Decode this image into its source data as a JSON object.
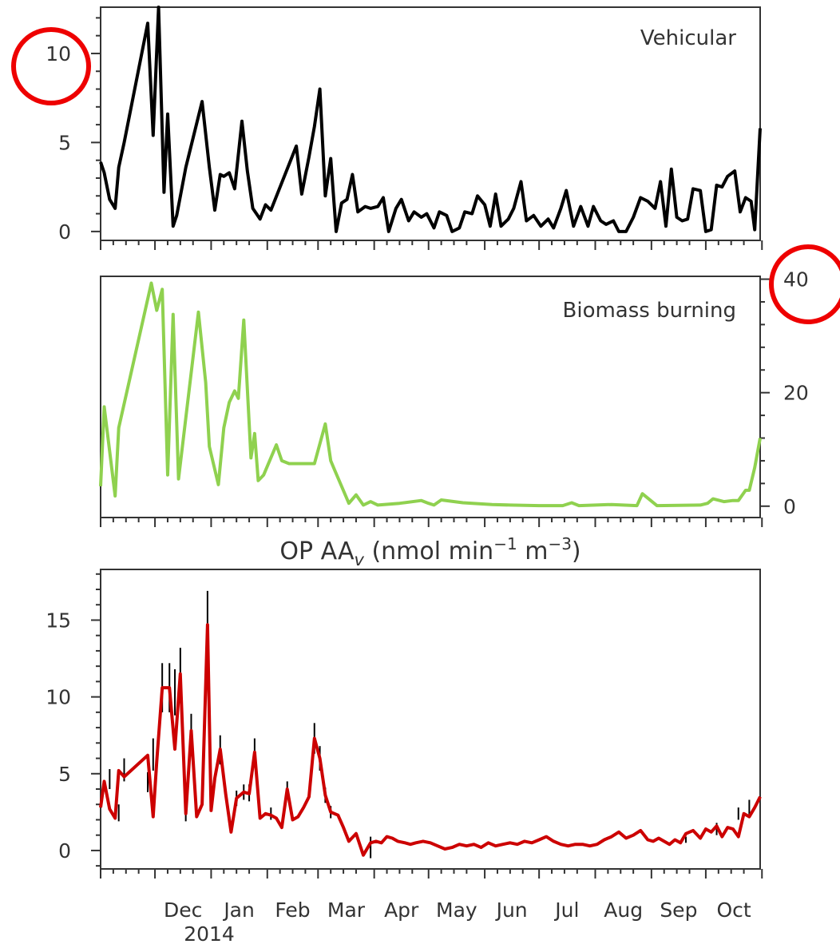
{
  "chart_data": {
    "type": "line",
    "x_axis": {
      "tick_labels": [
        "Dec",
        "Jan",
        "Feb",
        "Mar",
        "Apr",
        "May",
        "Jun",
        "Jul",
        "Aug",
        "Sep",
        "Oct"
      ],
      "year_label": "2014",
      "start": "2013-11-01",
      "end": "2014-10-31"
    },
    "panels": [
      {
        "type": "line",
        "label": "Vehicular",
        "color": "#000000",
        "y_axis_side": "left",
        "ylim": [
          -0.5,
          12.6
        ],
        "y_ticks": [
          0,
          5,
          10
        ],
        "highlighted_tick": "10",
        "x": [
          "2013-11-01",
          "2013-11-03",
          "2013-11-06",
          "2013-11-09",
          "2013-11-11",
          "2013-11-14",
          "2013-11-27",
          "2013-11-30",
          "2013-12-03",
          "2013-12-06",
          "2013-12-08",
          "2013-12-11",
          "2013-12-13",
          "2013-12-18",
          "2013-12-27",
          "2013-12-31",
          "2014-01-03",
          "2014-01-06",
          "2014-01-08",
          "2014-01-11",
          "2014-01-14",
          "2014-01-18",
          "2014-01-21",
          "2014-01-24",
          "2014-01-28",
          "2014-01-31",
          "2014-02-03",
          "2014-02-17",
          "2014-02-20",
          "2014-02-24",
          "2014-02-27",
          "2014-03-02",
          "2014-03-05",
          "2014-03-08",
          "2014-03-11",
          "2014-03-14",
          "2014-03-17",
          "2014-03-20",
          "2014-03-23",
          "2014-03-27",
          "2014-03-30",
          "2014-04-03",
          "2014-04-06",
          "2014-04-09",
          "2014-04-13",
          "2014-04-16",
          "2014-04-20",
          "2014-04-23",
          "2014-04-27",
          "2014-04-30",
          "2014-05-04",
          "2014-05-07",
          "2014-05-11",
          "2014-05-14",
          "2014-05-18",
          "2014-05-21",
          "2014-05-25",
          "2014-05-28",
          "2014-06-01",
          "2014-06-04",
          "2014-06-07",
          "2014-06-10",
          "2014-06-14",
          "2014-06-17",
          "2014-06-21",
          "2014-06-24",
          "2014-06-28",
          "2014-07-02",
          "2014-07-06",
          "2014-07-09",
          "2014-07-13",
          "2014-07-16",
          "2014-07-20",
          "2014-07-24",
          "2014-07-28",
          "2014-07-31",
          "2014-08-04",
          "2014-08-07",
          "2014-08-11",
          "2014-08-14",
          "2014-08-18",
          "2014-08-22",
          "2014-08-26",
          "2014-08-30",
          "2014-09-03",
          "2014-09-06",
          "2014-09-09",
          "2014-09-12",
          "2014-09-15",
          "2014-09-18",
          "2014-09-21",
          "2014-09-24",
          "2014-09-28",
          "2014-10-01",
          "2014-10-04",
          "2014-10-07",
          "2014-10-10",
          "2014-10-13",
          "2014-10-17",
          "2014-10-20",
          "2014-10-23",
          "2014-10-26",
          "2014-10-28",
          "2014-10-31"
        ],
        "values": [
          3.9,
          3.3,
          1.8,
          1.3,
          3.6,
          5.0,
          11.7,
          5.4,
          12.6,
          2.2,
          6.6,
          0.3,
          0.9,
          3.6,
          7.3,
          3.6,
          1.2,
          3.2,
          3.1,
          3.3,
          2.4,
          6.2,
          3.4,
          1.3,
          0.7,
          1.5,
          1.2,
          4.8,
          2.1,
          4.2,
          5.9,
          8.0,
          2.0,
          4.1,
          0.0,
          1.6,
          1.8,
          3.2,
          1.1,
          1.4,
          1.3,
          1.4,
          1.9,
          0.0,
          1.3,
          1.8,
          0.6,
          1.1,
          0.8,
          1.0,
          0.2,
          1.1,
          0.9,
          0.0,
          0.2,
          1.1,
          1.0,
          2.0,
          1.5,
          0.3,
          2.1,
          0.3,
          0.7,
          1.3,
          2.8,
          0.6,
          0.9,
          0.3,
          0.7,
          0.2,
          1.3,
          2.3,
          0.3,
          1.4,
          0.3,
          1.4,
          0.6,
          0.4,
          0.6,
          0.0,
          0.0,
          0.8,
          1.9,
          1.7,
          1.3,
          2.8,
          0.3,
          3.5,
          0.8,
          0.6,
          0.7,
          2.4,
          2.3,
          0.0,
          0.1,
          2.6,
          2.5,
          3.1,
          3.4,
          1.1,
          1.9,
          1.7,
          0.1,
          5.8
        ]
      },
      {
        "type": "line",
        "label": "Biomass burning",
        "color": "#8fd14f",
        "y_axis_side": "right",
        "ylim": [
          -2,
          40.5
        ],
        "y_ticks": [
          0,
          20,
          40
        ],
        "highlighted_tick": "40",
        "x": [
          "2013-11-01",
          "2013-11-03",
          "2013-11-09",
          "2013-11-11",
          "2013-11-29",
          "2013-12-02",
          "2013-12-05",
          "2013-12-08",
          "2013-12-11",
          "2013-12-14",
          "2013-12-25",
          "2013-12-29",
          "2013-12-31",
          "2014-01-05",
          "2014-01-08",
          "2014-01-11",
          "2014-01-14",
          "2014-01-16",
          "2014-01-19",
          "2014-01-23",
          "2014-01-25",
          "2014-01-27",
          "2014-01-30",
          "2014-02-06",
          "2014-02-09",
          "2014-02-13",
          "2014-02-27",
          "2014-03-05",
          "2014-03-08",
          "2014-03-10",
          "2014-03-14",
          "2014-03-18",
          "2014-03-22",
          "2014-03-26",
          "2014-03-30",
          "2014-04-03",
          "2014-04-15",
          "2014-04-27",
          "2014-05-01",
          "2014-05-04",
          "2014-05-08",
          "2014-05-20",
          "2014-06-05",
          "2014-06-15",
          "2014-07-01",
          "2014-07-14",
          "2014-07-19",
          "2014-07-23",
          "2014-08-10",
          "2014-08-24",
          "2014-08-27",
          "2014-09-04",
          "2014-09-28",
          "2014-10-02",
          "2014-10-05",
          "2014-10-11",
          "2014-10-16",
          "2014-10-19",
          "2014-10-23",
          "2014-10-25",
          "2014-10-28",
          "2014-10-31"
        ],
        "values": [
          3.5,
          17.5,
          1.8,
          13.8,
          39.3,
          34.5,
          38.2,
          5.5,
          33.8,
          4.8,
          34.2,
          21.8,
          10.5,
          3.8,
          13.8,
          18.3,
          20.3,
          19.0,
          32.8,
          8.5,
          12.8,
          4.5,
          5.5,
          10.8,
          8.0,
          7.5,
          7.5,
          14.5,
          8.0,
          6.5,
          3.5,
          0.5,
          2.0,
          0.2,
          0.8,
          0.2,
          0.5,
          1.0,
          0.5,
          0.2,
          1.1,
          0.6,
          0.3,
          0.2,
          0.1,
          0.1,
          0.6,
          0.1,
          0.3,
          0.1,
          2.2,
          0.1,
          0.2,
          0.5,
          1.3,
          0.8,
          1.0,
          1.0,
          2.8,
          2.8,
          6.8,
          12.0
        ]
      },
      {
        "type": "line",
        "title": "OP AA",
        "title_subscript": "v",
        "title_units": " (nmol min",
        "title_units_sup1": "−1",
        "title_units_mid": " m",
        "title_units_sup2": "−3",
        "title_units_end": ")",
        "color": "#cc0000",
        "error_bar_color": "#000000",
        "y_axis_side": "left",
        "ylim": [
          -1.2,
          18.3
        ],
        "y_ticks": [
          0,
          5,
          10,
          15
        ],
        "x": [
          "2013-11-01",
          "2013-11-03",
          "2013-11-06",
          "2013-11-09",
          "2013-11-11",
          "2013-11-14",
          "2013-11-27",
          "2013-11-30",
          "2013-12-02",
          "2013-12-05",
          "2013-12-09",
          "2013-12-12",
          "2013-12-15",
          "2013-12-18",
          "2013-12-21",
          "2013-12-24",
          "2013-12-27",
          "2013-12-30",
          "2014-01-01",
          "2014-01-03",
          "2014-01-06",
          "2014-01-09",
          "2014-01-12",
          "2014-01-15",
          "2014-01-19",
          "2014-01-22",
          "2014-01-25",
          "2014-01-28",
          "2014-01-31",
          "2014-02-03",
          "2014-02-06",
          "2014-02-09",
          "2014-02-12",
          "2014-02-15",
          "2014-02-18",
          "2014-02-21",
          "2014-02-24",
          "2014-02-27",
          "2014-03-02",
          "2014-03-05",
          "2014-03-08",
          "2014-03-12",
          "2014-03-15",
          "2014-03-18",
          "2014-03-22",
          "2014-03-26",
          "2014-03-30",
          "2014-04-02",
          "2014-04-05",
          "2014-04-08",
          "2014-04-11",
          "2014-04-14",
          "2014-04-18",
          "2014-04-21",
          "2014-04-24",
          "2014-04-28",
          "2014-05-02",
          "2014-05-06",
          "2014-05-10",
          "2014-05-14",
          "2014-05-18",
          "2014-05-22",
          "2014-05-26",
          "2014-05-30",
          "2014-06-03",
          "2014-06-07",
          "2014-06-11",
          "2014-06-15",
          "2014-06-19",
          "2014-06-23",
          "2014-06-27",
          "2014-07-01",
          "2014-07-05",
          "2014-07-09",
          "2014-07-13",
          "2014-07-17",
          "2014-07-21",
          "2014-07-25",
          "2014-07-29",
          "2014-08-02",
          "2014-08-06",
          "2014-08-10",
          "2014-08-14",
          "2014-08-18",
          "2014-08-22",
          "2014-08-26",
          "2014-08-30",
          "2014-09-02",
          "2014-09-05",
          "2014-09-08",
          "2014-09-11",
          "2014-09-14",
          "2014-09-17",
          "2014-09-20",
          "2014-09-24",
          "2014-09-28",
          "2014-10-01",
          "2014-10-04",
          "2014-10-07",
          "2014-10-10",
          "2014-10-13",
          "2014-10-16",
          "2014-10-19",
          "2014-10-22",
          "2014-10-25",
          "2014-10-28",
          "2014-10-31"
        ],
        "values": [
          2.8,
          4.5,
          2.7,
          2.1,
          5.2,
          4.8,
          6.2,
          2.2,
          5.8,
          10.6,
          10.6,
          6.6,
          11.5,
          2.4,
          7.8,
          2.2,
          3.0,
          14.7,
          2.6,
          4.7,
          6.6,
          3.7,
          1.2,
          3.4,
          3.8,
          3.7,
          6.4,
          2.1,
          2.4,
          2.3,
          2.1,
          1.5,
          4.0,
          2.0,
          2.2,
          2.8,
          3.5,
          7.3,
          6.0,
          3.6,
          2.5,
          2.3,
          1.5,
          0.6,
          1.1,
          -0.3,
          0.5,
          0.6,
          0.5,
          0.9,
          0.8,
          0.6,
          0.5,
          0.4,
          0.5,
          0.6,
          0.5,
          0.3,
          0.1,
          0.2,
          0.4,
          0.3,
          0.4,
          0.2,
          0.5,
          0.3,
          0.4,
          0.5,
          0.4,
          0.6,
          0.5,
          0.7,
          0.9,
          0.6,
          0.4,
          0.3,
          0.4,
          0.4,
          0.3,
          0.4,
          0.7,
          0.9,
          1.2,
          0.8,
          1.0,
          1.3,
          0.7,
          0.6,
          0.8,
          0.6,
          0.4,
          0.7,
          0.5,
          1.1,
          1.3,
          0.8,
          1.4,
          1.2,
          1.6,
          0.9,
          1.5,
          1.4,
          0.9,
          2.4,
          2.2,
          2.8,
          3.5
        ],
        "error_bars": [
          {
            "x": "2013-11-06",
            "lo": 4.0,
            "hi": 5.3
          },
          {
            "x": "2013-11-11",
            "lo": 1.9,
            "hi": 3.0
          },
          {
            "x": "2013-11-14",
            "lo": 4.5,
            "hi": 6.0
          },
          {
            "x": "2013-11-27",
            "lo": 3.8,
            "hi": 5.1
          },
          {
            "x": "2013-11-30",
            "lo": 5.2,
            "hi": 7.3
          },
          {
            "x": "2013-12-05",
            "lo": 9.0,
            "hi": 12.2
          },
          {
            "x": "2013-12-09",
            "lo": 9.0,
            "hi": 12.2
          },
          {
            "x": "2013-12-12",
            "lo": 8.8,
            "hi": 11.8
          },
          {
            "x": "2013-12-15",
            "lo": 9.8,
            "hi": 13.2
          },
          {
            "x": "2013-12-18",
            "lo": 1.9,
            "hi": 3.1
          },
          {
            "x": "2013-12-21",
            "lo": 6.6,
            "hi": 8.9
          },
          {
            "x": "2013-12-30",
            "lo": 12.6,
            "hi": 16.9
          },
          {
            "x": "2014-01-06",
            "lo": 5.6,
            "hi": 7.5
          },
          {
            "x": "2014-01-15",
            "lo": 2.9,
            "hi": 3.9
          },
          {
            "x": "2014-01-19",
            "lo": 3.3,
            "hi": 4.3
          },
          {
            "x": "2014-01-22",
            "lo": 3.2,
            "hi": 4.3
          },
          {
            "x": "2014-01-25",
            "lo": 5.5,
            "hi": 7.3
          },
          {
            "x": "2014-02-03",
            "lo": 2.0,
            "hi": 2.8
          },
          {
            "x": "2014-02-12",
            "lo": 3.4,
            "hi": 4.5
          },
          {
            "x": "2014-02-27",
            "lo": 6.3,
            "hi": 8.3
          },
          {
            "x": "2014-03-02",
            "lo": 5.2,
            "hi": 6.8
          },
          {
            "x": "2014-03-05",
            "lo": 3.1,
            "hi": 4.1
          },
          {
            "x": "2014-03-08",
            "lo": 2.1,
            "hi": 2.9
          },
          {
            "x": "2014-03-30",
            "lo": -0.5,
            "hi": 0.9
          },
          {
            "x": "2014-09-20",
            "lo": 0.5,
            "hi": 0.9
          },
          {
            "x": "2014-10-07",
            "lo": 1.0,
            "hi": 1.8
          },
          {
            "x": "2014-10-19",
            "lo": 2.0,
            "hi": 2.8
          },
          {
            "x": "2014-10-25",
            "lo": 2.3,
            "hi": 3.3
          }
        ]
      }
    ]
  }
}
